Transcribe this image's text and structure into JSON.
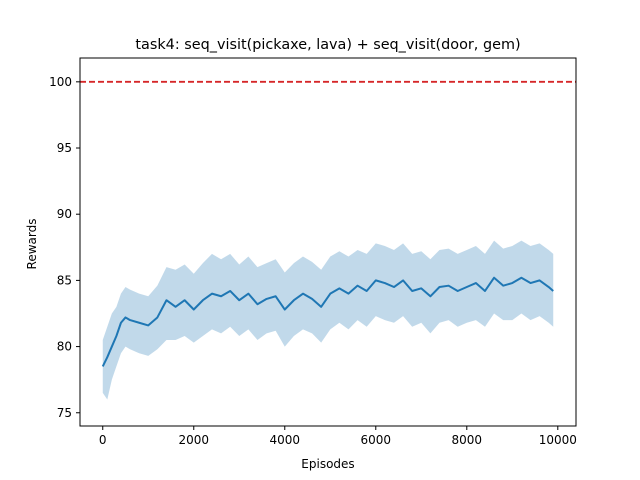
{
  "chart_data": {
    "type": "line",
    "title": "task4: seq_visit(pickaxe, lava) + seq_visit(door, gem)",
    "xlabel": "Episodes",
    "ylabel": "Rewards",
    "xlim": [
      -500,
      10400
    ],
    "ylim": [
      74,
      101.8
    ],
    "xticks": [
      0,
      2000,
      4000,
      6000,
      8000,
      10000
    ],
    "xtick_labels": [
      "0",
      "2000",
      "4000",
      "6000",
      "8000",
      "10000"
    ],
    "yticks": [
      75,
      80,
      85,
      90,
      95,
      100
    ],
    "ytick_labels": [
      "75",
      "80",
      "85",
      "90",
      "95",
      "100"
    ],
    "grid": false,
    "reference_line": {
      "y": 100,
      "color": "#d62728",
      "style": "dashed"
    },
    "series": [
      {
        "color": "#1f77b4",
        "band_color": "#1f77b4",
        "x": [
          0,
          100,
          200,
          300,
          400,
          500,
          600,
          800,
          1000,
          1200,
          1400,
          1600,
          1800,
          2000,
          2200,
          2400,
          2600,
          2800,
          3000,
          3200,
          3400,
          3600,
          3800,
          4000,
          4200,
          4400,
          4600,
          4800,
          5000,
          5200,
          5400,
          5600,
          5800,
          6000,
          6200,
          6400,
          6600,
          6800,
          7000,
          7200,
          7400,
          7600,
          7800,
          8000,
          8200,
          8400,
          8600,
          8800,
          9000,
          9200,
          9400,
          9600,
          9800,
          9900
        ],
        "y": [
          78.5,
          79.2,
          80.0,
          80.8,
          81.8,
          82.2,
          82.0,
          81.8,
          81.6,
          82.2,
          83.5,
          83.0,
          83.5,
          82.8,
          83.5,
          84.0,
          83.8,
          84.2,
          83.5,
          84.0,
          83.2,
          83.6,
          83.8,
          82.8,
          83.5,
          84.0,
          83.6,
          83.0,
          84.0,
          84.4,
          84.0,
          84.6,
          84.2,
          85.0,
          84.8,
          84.5,
          85.0,
          84.2,
          84.4,
          83.8,
          84.5,
          84.6,
          84.2,
          84.5,
          84.8,
          84.2,
          85.2,
          84.6,
          84.8,
          85.2,
          84.8,
          85.0,
          84.5,
          84.2
        ],
        "band_low": [
          76.5,
          76.0,
          77.5,
          78.5,
          79.5,
          80.0,
          79.8,
          79.5,
          79.3,
          79.8,
          80.5,
          80.5,
          80.8,
          80.3,
          80.8,
          81.3,
          81.0,
          81.5,
          80.8,
          81.3,
          80.5,
          81.0,
          81.2,
          80.0,
          80.8,
          81.3,
          81.0,
          80.3,
          81.3,
          81.8,
          81.3,
          82.0,
          81.5,
          82.3,
          82.0,
          81.8,
          82.3,
          81.5,
          81.8,
          81.0,
          81.8,
          82.0,
          81.5,
          81.8,
          82.0,
          81.5,
          82.5,
          82.0,
          82.0,
          82.5,
          82.0,
          82.3,
          81.8,
          81.5
        ],
        "band_high": [
          80.5,
          81.5,
          82.5,
          83.0,
          84.0,
          84.5,
          84.3,
          84.0,
          83.8,
          84.6,
          86.0,
          85.8,
          86.2,
          85.5,
          86.3,
          87.0,
          86.6,
          87.0,
          86.2,
          86.8,
          86.0,
          86.3,
          86.6,
          85.6,
          86.3,
          86.8,
          86.4,
          85.8,
          86.8,
          87.2,
          86.8,
          87.3,
          87.0,
          87.8,
          87.6,
          87.3,
          87.8,
          87.0,
          87.2,
          86.6,
          87.3,
          87.4,
          87.0,
          87.3,
          87.6,
          87.0,
          88.0,
          87.4,
          87.6,
          88.0,
          87.6,
          87.8,
          87.3,
          87.0
        ]
      }
    ]
  }
}
